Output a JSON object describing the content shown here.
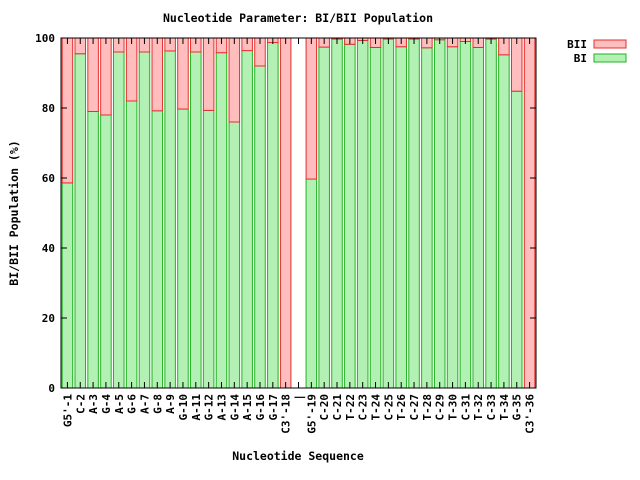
{
  "chart_data": {
    "type": "bar",
    "stacked": true,
    "title": "Nucleotide Parameter: BI/BII Population",
    "xlabel": "Nucleotide Sequence",
    "ylabel": "BI/BII Population (%)",
    "ylim": [
      0,
      100
    ],
    "yticks": [
      0,
      20,
      40,
      60,
      80,
      100
    ],
    "grid": false,
    "legend_position": "top-right",
    "categories": [
      "G5'-1",
      "C-2",
      "A-3",
      "G-4",
      "A-5",
      "G-6",
      "A-7",
      "G-8",
      "A-9",
      "G-10",
      "A-11",
      "G-12",
      "A-13",
      "G-14",
      "A-15",
      "G-16",
      "G-17",
      "C3'-18",
      "|",
      "G5'-19",
      "C-20",
      "C-21",
      "T-22",
      "C-23",
      "T-24",
      "C-25",
      "T-26",
      "C-27",
      "T-28",
      "C-29",
      "T-30",
      "C-31",
      "T-32",
      "C-33",
      "T-34",
      "G-35",
      "C3'-36"
    ],
    "series": [
      {
        "name": "BI",
        "fill": "#b3f0b3",
        "stroke": "#22b322",
        "values": [
          58.6,
          95.5,
          79.0,
          78.0,
          96.0,
          82.0,
          96.0,
          79.2,
          96.3,
          79.7,
          96.0,
          79.3,
          95.8,
          76.0,
          96.4,
          92.0,
          98.7,
          0,
          null,
          59.7,
          97.4,
          99.7,
          98.2,
          99.3,
          97.3,
          99.7,
          97.5,
          99.7,
          97.2,
          99.5,
          97.5,
          99.0,
          97.3,
          99.7,
          95.2,
          84.8,
          0
        ]
      },
      {
        "name": "BII",
        "fill": "#ffbdbd",
        "stroke": "#e33030",
        "values": [
          41.4,
          4.5,
          21.0,
          22.0,
          4.0,
          18.0,
          4.0,
          20.8,
          3.7,
          20.3,
          4.0,
          20.7,
          4.2,
          24.0,
          3.6,
          8.0,
          1.3,
          100,
          null,
          40.3,
          2.6,
          0.3,
          1.8,
          0.7,
          2.7,
          0.3,
          2.5,
          0.3,
          2.8,
          0.5,
          2.5,
          1.0,
          2.7,
          0.3,
          4.8,
          15.2,
          100
        ]
      }
    ]
  }
}
